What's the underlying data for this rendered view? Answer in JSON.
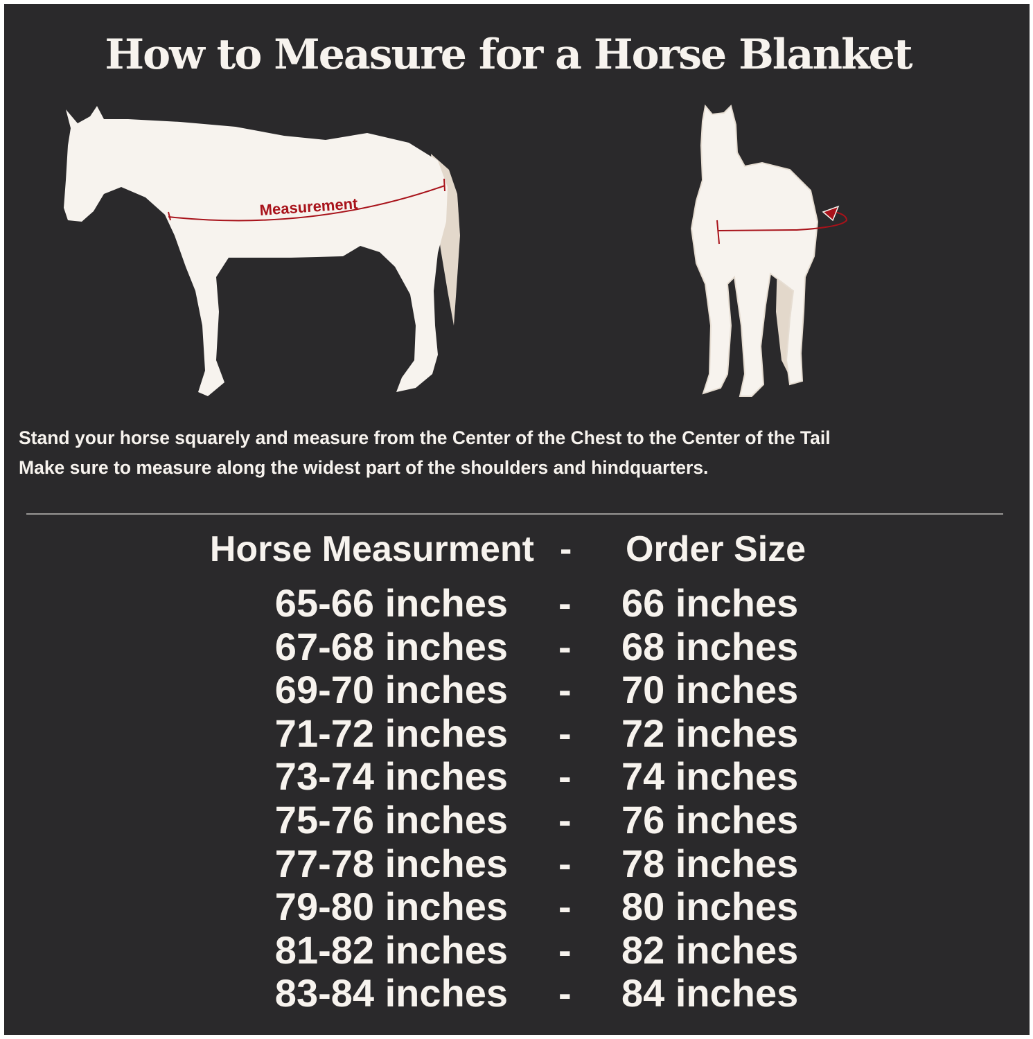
{
  "title": "How to Measure for a Horse Blanket",
  "illustration": {
    "side_label": "Measurement",
    "colors": {
      "background": "#2a292b",
      "horse": "#f7f3ee",
      "tail": "#e3d8cb",
      "measure_line": "#a8121a"
    }
  },
  "instructions": [
    "Stand your horse squarely and measure from the Center of the Chest to the Center of the Tail",
    "Make sure to measure along the widest part of the shoulders and hindquarters."
  ],
  "table": {
    "header": {
      "left": "Horse Measurment",
      "sep": "-",
      "right": "Order Size"
    },
    "rows": [
      {
        "measurement": "65-66 inches",
        "sep": "-",
        "size": "66 inches"
      },
      {
        "measurement": "67-68 inches",
        "sep": "-",
        "size": "68 inches"
      },
      {
        "measurement": "69-70 inches",
        "sep": "-",
        "size": "70 inches"
      },
      {
        "measurement": "71-72 inches",
        "sep": "-",
        "size": "72 inches"
      },
      {
        "measurement": "73-74 inches",
        "sep": "-",
        "size": "74 inches"
      },
      {
        "measurement": "75-76 inches",
        "sep": "-",
        "size": "76 inches"
      },
      {
        "measurement": "77-78 inches",
        "sep": "-",
        "size": "78 inches"
      },
      {
        "measurement": "79-80 inches",
        "sep": "-",
        "size": "80 inches"
      },
      {
        "measurement": "81-82 inches",
        "sep": "-",
        "size": "82 inches"
      },
      {
        "measurement": "83-84 inches",
        "sep": "-",
        "size": "84 inches"
      }
    ]
  }
}
